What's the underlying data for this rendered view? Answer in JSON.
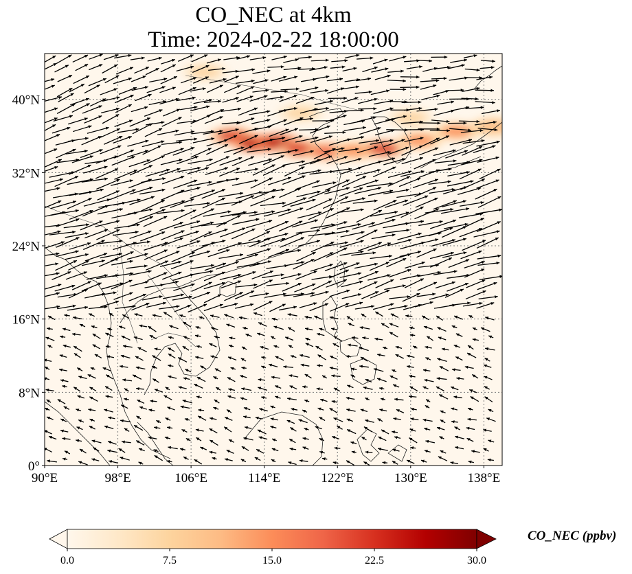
{
  "title": {
    "line1": "CO_NEC at 4km",
    "line2": "Time: 2024-02-22 18:00:00"
  },
  "map": {
    "lon_range": [
      90,
      140
    ],
    "lat_range": [
      0,
      45
    ],
    "gridlines": "dotted",
    "lon_ticks": [
      {
        "value": 90,
        "label": "90°E"
      },
      {
        "value": 98,
        "label": "98°E"
      },
      {
        "value": 106,
        "label": "106°E"
      },
      {
        "value": 114,
        "label": "114°E"
      },
      {
        "value": 122,
        "label": "122°E"
      },
      {
        "value": 130,
        "label": "130°E"
      },
      {
        "value": 138,
        "label": "138°E"
      }
    ],
    "lat_ticks": [
      {
        "value": 0,
        "label": "0°"
      },
      {
        "value": 8,
        "label": "8°N"
      },
      {
        "value": 16,
        "label": "16°N"
      },
      {
        "value": 24,
        "label": "24°N"
      },
      {
        "value": 32,
        "label": "32°N"
      },
      {
        "value": 40,
        "label": "40°N"
      }
    ],
    "plume": [
      {
        "lon": 110.5,
        "lat": 36.0,
        "value": 22
      },
      {
        "lon": 113.0,
        "lat": 35.2,
        "value": 27
      },
      {
        "lon": 115.5,
        "lat": 35.3,
        "value": 26
      },
      {
        "lon": 118.0,
        "lat": 34.6,
        "value": 22
      },
      {
        "lon": 121.0,
        "lat": 34.3,
        "value": 20
      },
      {
        "lon": 124.0,
        "lat": 34.4,
        "value": 16
      },
      {
        "lon": 127.0,
        "lat": 34.6,
        "value": 22
      },
      {
        "lon": 131.0,
        "lat": 35.5,
        "value": 15
      },
      {
        "lon": 135.0,
        "lat": 36.5,
        "value": 14
      },
      {
        "lon": 139.0,
        "lat": 37.0,
        "value": 13
      },
      {
        "lon": 107.5,
        "lat": 43.0,
        "value": 9
      },
      {
        "lon": 118.0,
        "lat": 38.5,
        "value": 8
      },
      {
        "lon": 130.0,
        "lat": 38.0,
        "value": 9
      }
    ]
  },
  "colorbar": {
    "label": "CO_NEC (ppbv)",
    "range": [
      0,
      30
    ],
    "extend": "both",
    "colormap": [
      "#fff7ec",
      "#fee8c8",
      "#fdd49e",
      "#fdbb84",
      "#fc8d59",
      "#ef6548",
      "#d7301f",
      "#b30000",
      "#7f0000"
    ],
    "ticks": [
      {
        "value": 0,
        "label": "0.0"
      },
      {
        "value": 7.5,
        "label": "7.5"
      },
      {
        "value": 15,
        "label": "15.0"
      },
      {
        "value": 22.5,
        "label": "22.5"
      },
      {
        "value": 30,
        "label": "30.0"
      }
    ]
  }
}
